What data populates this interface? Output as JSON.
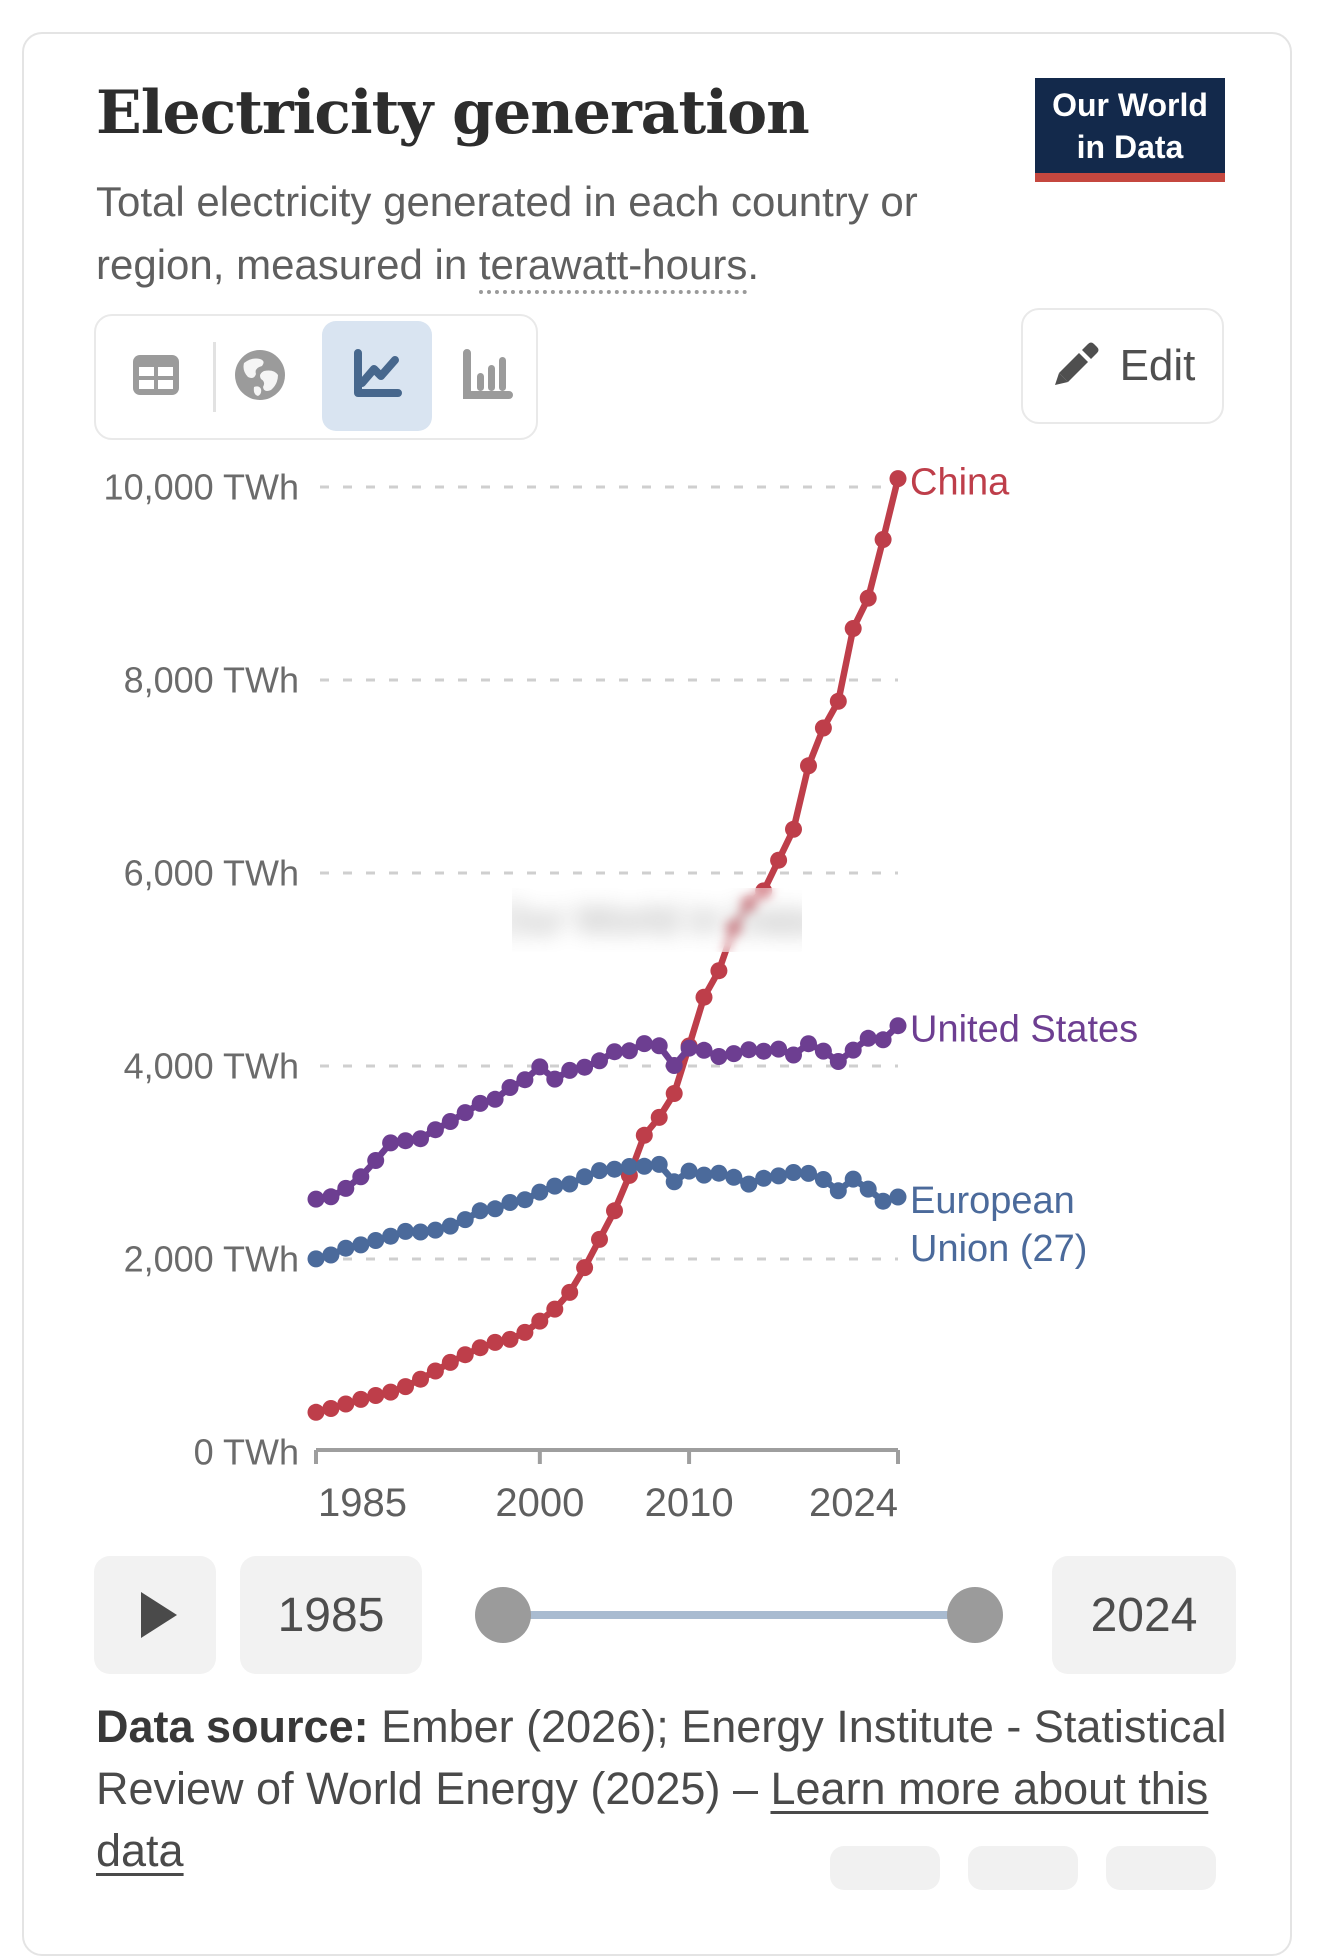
{
  "header": {
    "title": "Electricity generation",
    "subtitle_prefix": "Total electricity generated in each country or region, measured in ",
    "subtitle_term": "terawatt-hours",
    "subtitle_suffix": ".",
    "logo_line1": "Our World",
    "logo_line2": "in Data",
    "logo_bg": "#13294b",
    "logo_accent": "#c5473f"
  },
  "toolbar": {
    "views": [
      {
        "id": "table",
        "icon": "table-icon",
        "selected": false
      },
      {
        "id": "map",
        "icon": "globe-icon",
        "selected": false
      },
      {
        "id": "line-chart",
        "icon": "line-chart-icon",
        "selected": true
      },
      {
        "id": "bar-chart",
        "icon": "bar-chart-icon",
        "selected": false
      }
    ],
    "selected_bg": "#d9e4f1",
    "edit_label": "Edit"
  },
  "watermark_text": "Our World in Data",
  "chart_data": {
    "type": "line",
    "unit": "TWh",
    "x": [
      1985,
      1986,
      1987,
      1988,
      1989,
      1990,
      1991,
      1992,
      1993,
      1994,
      1995,
      1996,
      1997,
      1998,
      1999,
      2000,
      2001,
      2002,
      2003,
      2004,
      2005,
      2006,
      2007,
      2008,
      2009,
      2010,
      2011,
      2012,
      2013,
      2014,
      2015,
      2016,
      2017,
      2018,
      2019,
      2020,
      2021,
      2022,
      2023,
      2024
    ],
    "series": [
      {
        "name": "China",
        "color": "#be3e4a",
        "label_lines": [
          "China"
        ],
        "values": [
          411,
          451,
          497,
          545,
          585,
          621,
          678,
          754,
          839,
          928,
          1008,
          1081,
          1136,
          1167,
          1239,
          1356,
          1481,
          1654,
          1911,
          2203,
          2500,
          2866,
          3282,
          3467,
          3715,
          4207,
          4713,
          4988,
          5432,
          5680,
          5815,
          6133,
          6453,
          7111,
          7503,
          7779,
          8534,
          8849,
          9456,
          10087
        ]
      },
      {
        "name": "United States",
        "color": "#6d3e91",
        "label_lines": [
          "United States"
        ],
        "values": [
          2621,
          2645,
          2732,
          2852,
          3021,
          3203,
          3226,
          3247,
          3340,
          3425,
          3517,
          3612,
          3655,
          3777,
          3858,
          3991,
          3864,
          3954,
          3988,
          4054,
          4148,
          4157,
          4232,
          4209,
          4005,
          4186,
          4163,
          4098,
          4129,
          4169,
          4153,
          4175,
          4114,
          4231,
          4154,
          4047,
          4165,
          4287,
          4272,
          4418
        ]
      },
      {
        "name": "European Union (27)",
        "color": "#4b6a9b",
        "label_lines": [
          "European",
          "Union (27)"
        ],
        "values": [
          2001,
          2041,
          2112,
          2146,
          2192,
          2236,
          2286,
          2280,
          2299,
          2341,
          2408,
          2500,
          2520,
          2585,
          2615,
          2693,
          2755,
          2777,
          2852,
          2916,
          2931,
          2959,
          2961,
          2980,
          2800,
          2911,
          2869,
          2889,
          2847,
          2776,
          2836,
          2861,
          2896,
          2887,
          2824,
          2707,
          2828,
          2724,
          2599,
          2642
        ]
      }
    ],
    "yticks": [
      {
        "value": 0,
        "label": "0 TWh"
      },
      {
        "value": 2000,
        "label": "2,000 TWh"
      },
      {
        "value": 4000,
        "label": "4,000 TWh"
      },
      {
        "value": 6000,
        "label": "6,000 TWh"
      },
      {
        "value": 8000,
        "label": "8,000 TWh"
      },
      {
        "value": 10000,
        "label": "10,000 TWh"
      }
    ],
    "xticks": [
      1985,
      2000,
      2010,
      2024
    ],
    "ylim": [
      0,
      10000
    ],
    "xlim": [
      1985,
      2024
    ],
    "grid": "dashed-horizontal",
    "legend_position": "right-of-line-ends"
  },
  "timeline": {
    "start_label": "1985",
    "end_label": "2024"
  },
  "footer": {
    "prefix": "Data source:",
    "source_text": " Ember (2026); Energy Institute - Statistical Review of World Energy (2025) – ",
    "link_label": "Learn more about this data"
  }
}
